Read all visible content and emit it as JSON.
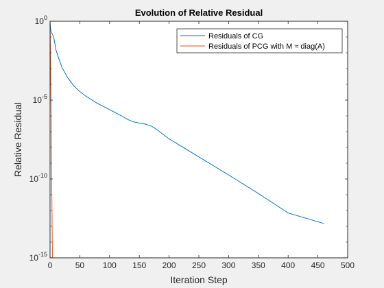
{
  "chart_data": {
    "type": "line",
    "title": "Evolution of Relative Residual",
    "xlabel": "Iteration Step",
    "ylabel": "Relative Residual",
    "xlim": [
      0,
      500
    ],
    "ylim": [
      1e-15,
      1
    ],
    "yscale": "log",
    "grid": false,
    "legend_location": "top-right",
    "xticks": [
      0,
      50,
      100,
      150,
      200,
      250,
      300,
      350,
      400,
      450,
      500
    ],
    "xtick_labels": [
      "0",
      "50",
      "100",
      "150",
      "200",
      "250",
      "300",
      "350",
      "400",
      "450",
      "500"
    ],
    "yticks": [
      1e-15,
      1e-10,
      1e-05,
      1
    ],
    "ytick_labels": [
      {
        "base": "10",
        "exp": "-15"
      },
      {
        "base": "10",
        "exp": "-10"
      },
      {
        "base": "10",
        "exp": "-5"
      },
      {
        "base": "10",
        "exp": "0"
      }
    ],
    "series": [
      {
        "name": "Residuals of CG",
        "color": "#0072BD",
        "x": [
          0,
          1,
          2,
          4,
          6,
          8,
          10,
          15,
          20,
          30,
          40,
          50,
          60,
          80,
          100,
          120,
          130,
          140,
          150,
          160,
          170,
          180,
          200,
          250,
          300,
          350,
          400,
          460
        ],
        "y": [
          1,
          0.3,
          0.2,
          0.15,
          0.1,
          0.04,
          0.015,
          0.004,
          0.0012,
          0.00025,
          8e-05,
          3.5e-05,
          1.8e-05,
          6e-06,
          2.5e-06,
          1e-06,
          6e-07,
          4.2e-07,
          3.5e-07,
          3e-07,
          2.3e-07,
          1.3e-07,
          3.5e-08,
          2.5e-09,
          1.8e-10,
          1.2e-11,
          7e-13,
          1.5e-13
        ]
      },
      {
        "name": "Residuals of PCG with M ≈ diag(A)",
        "color": "#D95319",
        "x": [
          0,
          1,
          2,
          3,
          4
        ],
        "y": [
          1,
          0.001,
          1e-07,
          1e-11,
          1e-15
        ]
      }
    ]
  }
}
